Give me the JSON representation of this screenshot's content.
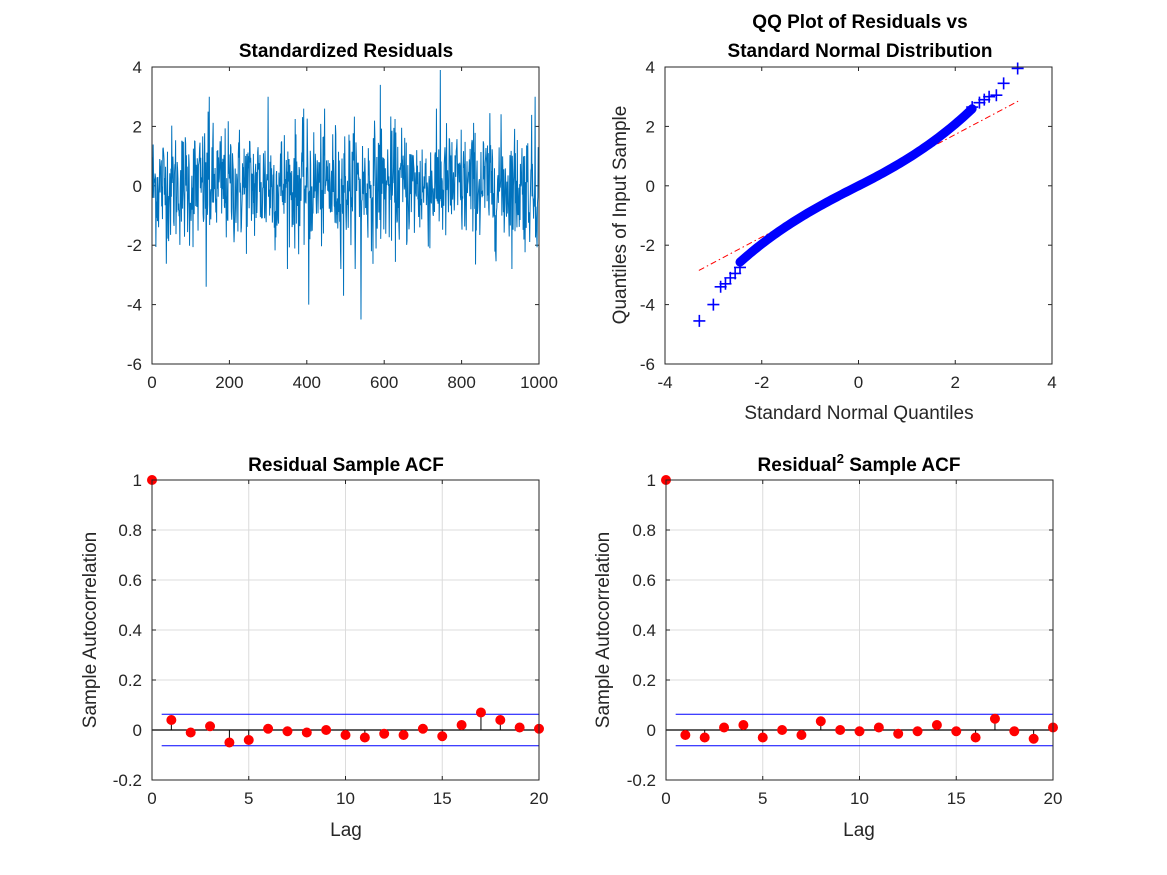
{
  "chart_data": [
    {
      "id": "residuals",
      "type": "line",
      "title": "Standardized Residuals",
      "xlabel": "",
      "ylabel": "",
      "xlim": [
        0,
        1000
      ],
      "ylim": [
        -6,
        4
      ],
      "xticks": [
        "0",
        "200",
        "400",
        "600",
        "800",
        "1000"
      ],
      "yticks": [
        "-6",
        "-4",
        "-2",
        "0",
        "2",
        "4"
      ],
      "grid": false,
      "series": [
        {
          "name": "residuals",
          "color": "#0072bd",
          "n": 1000,
          "note": "noise series approx. N(0,1); notable extremes listed",
          "extremes": [
            {
              "x": 140,
              "y": -3.4
            },
            {
              "x": 148,
              "y": 3.0
            },
            {
              "x": 300,
              "y": 3.0
            },
            {
              "x": 405,
              "y": -4.0
            },
            {
              "x": 495,
              "y": -3.7
            },
            {
              "x": 540,
              "y": -4.5
            },
            {
              "x": 590,
              "y": 3.4
            },
            {
              "x": 745,
              "y": 3.9
            },
            {
              "x": 990,
              "y": 3.0
            }
          ]
        }
      ]
    },
    {
      "id": "qq",
      "type": "scatter",
      "title": "QQ Plot of Residuals vs",
      "title2": "Standard Normal Distribution",
      "xlabel": "Standard Normal Quantiles",
      "ylabel": "Quantiles of Input Sample",
      "xlim": [
        -4,
        4
      ],
      "ylim": [
        -6,
        4
      ],
      "xticks": [
        "-4",
        "-2",
        "0",
        "2",
        "4"
      ],
      "yticks": [
        "-6",
        "-4",
        "-2",
        "0",
        "2",
        "4"
      ],
      "grid": false,
      "marker_color": "#0000ff",
      "ref_line_color": "#ff0000",
      "ref_line": {
        "x": [
          -3.3,
          3.3
        ],
        "y": [
          -2.85,
          2.85
        ]
      },
      "note": "upper tail heavier than normal; extreme points listed",
      "points": [
        {
          "x": -3.29,
          "y": -4.55
        },
        {
          "x": -3.0,
          "y": -4.0
        },
        {
          "x": -2.85,
          "y": -3.4
        },
        {
          "x": -2.75,
          "y": -3.3
        },
        {
          "x": -2.65,
          "y": -3.1
        },
        {
          "x": -2.55,
          "y": -2.95
        },
        {
          "x": -2.45,
          "y": -2.75
        },
        {
          "x": 2.35,
          "y": 2.65
        },
        {
          "x": 2.5,
          "y": 2.8
        },
        {
          "x": 2.6,
          "y": 2.9
        },
        {
          "x": 2.7,
          "y": 3.0
        },
        {
          "x": 2.85,
          "y": 3.05
        },
        {
          "x": 3.0,
          "y": 3.45
        },
        {
          "x": 3.29,
          "y": 3.95
        }
      ]
    },
    {
      "id": "acf1",
      "type": "stem",
      "title": "Residual Sample ACF",
      "xlabel": "Lag",
      "ylabel": "Sample Autocorrelation",
      "xlim": [
        0,
        20
      ],
      "ylim": [
        -0.2,
        1
      ],
      "xticks": [
        "0",
        "5",
        "10",
        "15",
        "20"
      ],
      "yticks": [
        "-0.2",
        "0",
        "0.2",
        "0.4",
        "0.6",
        "0.8",
        "1"
      ],
      "grid": true,
      "bounds": [
        0.0632,
        -0.0632
      ],
      "stem_color": "#ff0000",
      "bound_color": "#0000ff",
      "lags": [
        0,
        1,
        2,
        3,
        4,
        5,
        6,
        7,
        8,
        9,
        10,
        11,
        12,
        13,
        14,
        15,
        16,
        17,
        18,
        19,
        20
      ],
      "values": [
        1.0,
        0.04,
        -0.01,
        0.015,
        -0.05,
        -0.04,
        0.005,
        -0.005,
        -0.01,
        0.0,
        -0.02,
        -0.03,
        -0.015,
        -0.02,
        0.005,
        -0.025,
        0.02,
        0.07,
        0.04,
        0.01,
        0.005
      ]
    },
    {
      "id": "acf2",
      "type": "stem",
      "title": "Residual",
      "title_sup": "2",
      "title_tail": " Sample ACF",
      "xlabel": "Lag",
      "ylabel": "Sample Autocorrelation",
      "xlim": [
        0,
        20
      ],
      "ylim": [
        -0.2,
        1
      ],
      "xticks": [
        "0",
        "5",
        "10",
        "15",
        "20"
      ],
      "yticks": [
        "-0.2",
        "0",
        "0.2",
        "0.4",
        "0.6",
        "0.8",
        "1"
      ],
      "grid": true,
      "bounds": [
        0.0632,
        -0.0632
      ],
      "stem_color": "#ff0000",
      "bound_color": "#0000ff",
      "lags": [
        0,
        1,
        2,
        3,
        4,
        5,
        6,
        7,
        8,
        9,
        10,
        11,
        12,
        13,
        14,
        15,
        16,
        17,
        18,
        19,
        20
      ],
      "values": [
        1.0,
        -0.02,
        -0.03,
        0.01,
        0.02,
        -0.03,
        0.0,
        -0.02,
        0.035,
        0.0,
        -0.005,
        0.01,
        -0.015,
        -0.005,
        0.02,
        -0.005,
        -0.03,
        0.045,
        -0.005,
        -0.035,
        0.01
      ]
    }
  ]
}
